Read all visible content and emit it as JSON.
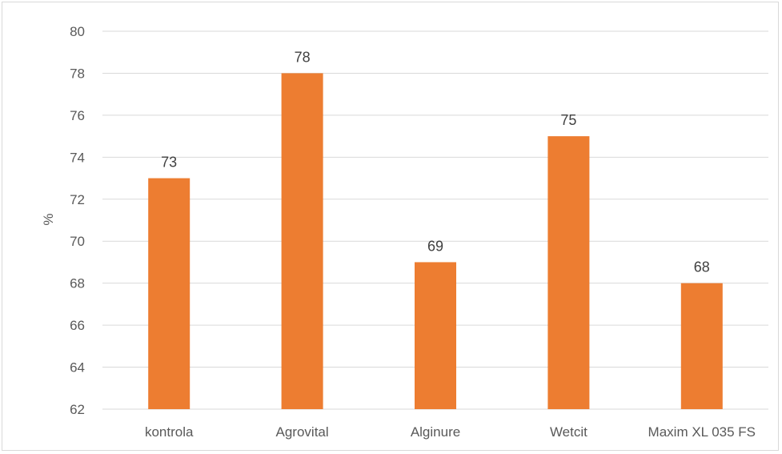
{
  "chart_data": {
    "type": "bar",
    "categories": [
      "kontrola",
      "Agrovital",
      "Alginure",
      "Wetcit",
      "Maxim XL 035 FS"
    ],
    "values": [
      73,
      78,
      69,
      75,
      68
    ],
    "data_labels": [
      "73",
      "78",
      "69",
      "75",
      "68"
    ],
    "ylabel": "%",
    "ylim": [
      62,
      80
    ],
    "yticks": [
      "62",
      "64",
      "66",
      "68",
      "70",
      "72",
      "74",
      "76",
      "78",
      "80"
    ],
    "grid": true,
    "legend": "none",
    "colors": {
      "bar": "#ED7D31",
      "grid": "#d9d9d9",
      "axis": "#d9d9d9"
    }
  }
}
